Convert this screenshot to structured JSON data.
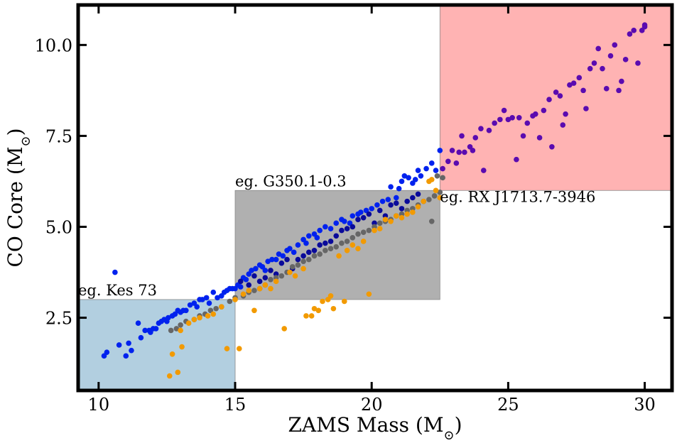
{
  "chart_data": {
    "type": "scatter",
    "title": "",
    "xlabel": "ZAMS Mass (M",
    "ylabel": "CO Core (M",
    "label_symbol": "⊙",
    "xlim": [
      9.25,
      31.0
    ],
    "ylim": [
      0.5,
      11.1
    ],
    "xticks": [
      10,
      15,
      20,
      25,
      30
    ],
    "xtick_labels": [
      "10",
      "15",
      "20",
      "25",
      "30"
    ],
    "yticks": [
      2.5,
      5.0,
      7.5,
      10.0
    ],
    "ytick_labels": [
      "2.5",
      "5.0",
      "7.5",
      "10.0"
    ],
    "grid": false,
    "regions": [
      {
        "x": [
          9.25,
          15.0
        ],
        "y": [
          0.5,
          3.0
        ],
        "color": "#b2cfe0",
        "label": "eg. Kes 73"
      },
      {
        "x": [
          15.0,
          22.5
        ],
        "y": [
          3.0,
          6.0
        ],
        "color": "#b0b0b0",
        "label": "eg. G350.1-0.3"
      },
      {
        "x": [
          22.5,
          31.0
        ],
        "y": [
          6.0,
          11.1
        ],
        "color": "#ffb3b3",
        "label": "eg. RX J1713.7-3946"
      }
    ],
    "series": [
      {
        "color": "#0022ee",
        "points": [
          [
            10.2,
            1.45
          ],
          [
            10.3,
            1.55
          ],
          [
            10.6,
            3.75
          ],
          [
            10.75,
            1.75
          ],
          [
            11.0,
            1.45
          ],
          [
            11.1,
            1.8
          ],
          [
            11.2,
            1.6
          ],
          [
            11.45,
            2.35
          ],
          [
            11.55,
            1.95
          ],
          [
            11.7,
            2.15
          ],
          [
            11.85,
            2.15
          ],
          [
            11.9,
            2.1
          ],
          [
            12.0,
            2.2
          ],
          [
            12.1,
            2.2
          ],
          [
            12.2,
            2.35
          ],
          [
            12.3,
            2.4
          ],
          [
            12.4,
            2.45
          ],
          [
            12.5,
            2.4
          ],
          [
            12.55,
            2.5
          ],
          [
            12.7,
            2.55
          ],
          [
            12.8,
            2.6
          ],
          [
            12.9,
            2.7
          ],
          [
            13.0,
            2.65
          ],
          [
            13.1,
            2.7
          ],
          [
            13.2,
            2.7
          ],
          [
            13.35,
            2.85
          ],
          [
            13.5,
            2.9
          ],
          [
            13.6,
            2.8
          ],
          [
            13.7,
            3.0
          ],
          [
            13.8,
            3.0
          ],
          [
            13.95,
            3.05
          ],
          [
            14.05,
            2.9
          ],
          [
            14.2,
            3.2
          ],
          [
            14.35,
            3.05
          ],
          [
            14.5,
            3.1
          ],
          [
            14.6,
            3.2
          ],
          [
            14.7,
            3.25
          ],
          [
            14.8,
            3.3
          ],
          [
            14.9,
            3.3
          ],
          [
            15.0,
            3.3
          ],
          [
            15.1,
            3.4
          ],
          [
            15.2,
            3.35
          ],
          [
            15.3,
            3.6
          ],
          [
            15.4,
            3.55
          ],
          [
            15.5,
            3.7
          ],
          [
            15.6,
            3.8
          ],
          [
            15.75,
            3.85
          ],
          [
            15.9,
            3.95
          ],
          [
            16.0,
            3.9
          ],
          [
            16.1,
            3.8
          ],
          [
            16.2,
            4.05
          ],
          [
            16.35,
            4.1
          ],
          [
            16.5,
            4.1
          ],
          [
            16.6,
            4.25
          ],
          [
            16.75,
            4.2
          ],
          [
            16.9,
            4.35
          ],
          [
            17.0,
            4.4
          ],
          [
            17.15,
            4.3
          ],
          [
            17.3,
            4.5
          ],
          [
            17.5,
            4.65
          ],
          [
            17.6,
            4.55
          ],
          [
            17.7,
            4.75
          ],
          [
            17.9,
            4.8
          ],
          [
            18.0,
            4.7
          ],
          [
            18.1,
            4.9
          ],
          [
            18.3,
            5.0
          ],
          [
            18.5,
            4.95
          ],
          [
            18.7,
            5.1
          ],
          [
            18.9,
            5.2
          ],
          [
            19.0,
            5.15
          ],
          [
            19.2,
            5.1
          ],
          [
            19.3,
            5.3
          ],
          [
            19.5,
            5.35
          ],
          [
            19.6,
            5.4
          ],
          [
            19.8,
            5.45
          ],
          [
            20.0,
            5.5
          ],
          [
            20.2,
            5.6
          ],
          [
            20.4,
            5.7
          ],
          [
            20.6,
            5.75
          ],
          [
            20.7,
            6.1
          ],
          [
            20.9,
            5.8
          ],
          [
            21.0,
            6.05
          ],
          [
            21.1,
            6.25
          ],
          [
            21.2,
            6.4
          ],
          [
            21.35,
            6.35
          ],
          [
            21.5,
            6.2
          ],
          [
            21.6,
            6.3
          ],
          [
            21.7,
            6.55
          ],
          [
            21.8,
            6.4
          ],
          [
            22.0,
            6.6
          ],
          [
            22.2,
            6.75
          ],
          [
            22.35,
            6.55
          ],
          [
            22.5,
            7.1
          ]
        ]
      },
      {
        "color": "#0a0a9a",
        "points": [
          [
            15.2,
            3.5
          ],
          [
            15.5,
            3.4
          ],
          [
            15.7,
            3.65
          ],
          [
            15.9,
            3.5
          ],
          [
            16.1,
            3.6
          ],
          [
            16.3,
            3.8
          ],
          [
            16.5,
            3.7
          ],
          [
            16.7,
            4.0
          ],
          [
            16.9,
            4.1
          ],
          [
            17.1,
            3.85
          ],
          [
            17.3,
            4.1
          ],
          [
            17.5,
            4.2
          ],
          [
            17.7,
            4.3
          ],
          [
            17.9,
            4.35
          ],
          [
            18.1,
            4.5
          ],
          [
            18.3,
            4.55
          ],
          [
            18.5,
            4.6
          ],
          [
            18.7,
            4.75
          ],
          [
            18.9,
            4.9
          ],
          [
            19.1,
            4.95
          ],
          [
            19.3,
            5.0
          ],
          [
            19.5,
            5.2
          ],
          [
            19.7,
            5.25
          ],
          [
            19.9,
            5.35
          ],
          [
            20.1,
            5.1
          ],
          [
            20.3,
            5.45
          ],
          [
            20.5,
            5.3
          ],
          [
            20.7,
            5.6
          ],
          [
            20.9,
            5.65
          ],
          [
            21.1,
            5.5
          ],
          [
            21.3,
            5.7
          ],
          [
            21.5,
            5.8
          ],
          [
            21.7,
            5.9
          ]
        ]
      },
      {
        "color": "#666666",
        "points": [
          [
            12.65,
            2.15
          ],
          [
            12.85,
            2.2
          ],
          [
            13.0,
            2.3
          ],
          [
            13.2,
            2.4
          ],
          [
            13.5,
            2.45
          ],
          [
            13.7,
            2.55
          ],
          [
            13.9,
            2.6
          ],
          [
            14.1,
            2.7
          ],
          [
            14.3,
            2.75
          ],
          [
            14.5,
            2.8
          ],
          [
            14.8,
            2.95
          ],
          [
            15.0,
            3.05
          ],
          [
            15.3,
            3.1
          ],
          [
            15.5,
            3.2
          ],
          [
            15.7,
            3.25
          ],
          [
            15.9,
            3.3
          ],
          [
            16.1,
            3.4
          ],
          [
            16.3,
            3.55
          ],
          [
            16.5,
            3.6
          ],
          [
            16.7,
            3.65
          ],
          [
            16.9,
            3.75
          ],
          [
            17.1,
            3.9
          ],
          [
            17.3,
            3.95
          ],
          [
            17.5,
            4.05
          ],
          [
            17.7,
            4.1
          ],
          [
            17.9,
            4.2
          ],
          [
            18.1,
            4.25
          ],
          [
            18.3,
            4.35
          ],
          [
            18.5,
            4.4
          ],
          [
            18.7,
            4.45
          ],
          [
            18.9,
            4.55
          ],
          [
            19.1,
            4.6
          ],
          [
            19.3,
            4.7
          ],
          [
            19.5,
            4.8
          ],
          [
            19.7,
            4.85
          ],
          [
            19.9,
            4.9
          ],
          [
            20.1,
            5.0
          ],
          [
            20.3,
            5.1
          ],
          [
            20.5,
            5.15
          ],
          [
            20.7,
            5.2
          ],
          [
            20.9,
            5.3
          ],
          [
            21.1,
            5.35
          ],
          [
            21.3,
            5.45
          ],
          [
            21.5,
            5.5
          ],
          [
            21.7,
            5.6
          ],
          [
            21.9,
            5.7
          ],
          [
            22.1,
            5.75
          ],
          [
            22.2,
            5.15
          ],
          [
            22.3,
            5.85
          ],
          [
            22.5,
            5.95
          ],
          [
            22.6,
            6.35
          ],
          [
            22.4,
            6.4
          ]
        ]
      },
      {
        "color": "#f29a00",
        "points": [
          [
            12.6,
            0.9
          ],
          [
            12.7,
            1.5
          ],
          [
            12.9,
            1.0
          ],
          [
            13.05,
            1.7
          ],
          [
            13.0,
            2.15
          ],
          [
            13.3,
            2.35
          ],
          [
            13.5,
            2.45
          ],
          [
            13.7,
            2.5
          ],
          [
            14.0,
            2.55
          ],
          [
            14.2,
            2.6
          ],
          [
            14.5,
            2.8
          ],
          [
            14.7,
            1.65
          ],
          [
            15.0,
            3.0
          ],
          [
            15.15,
            1.65
          ],
          [
            15.3,
            3.15
          ],
          [
            15.5,
            3.25
          ],
          [
            15.7,
            2.7
          ],
          [
            15.9,
            3.3
          ],
          [
            16.1,
            3.4
          ],
          [
            16.3,
            3.3
          ],
          [
            16.5,
            3.5
          ],
          [
            16.8,
            2.2
          ],
          [
            17.0,
            3.75
          ],
          [
            17.2,
            3.65
          ],
          [
            17.5,
            3.85
          ],
          [
            17.6,
            2.55
          ],
          [
            17.8,
            2.55
          ],
          [
            17.9,
            2.75
          ],
          [
            18.05,
            2.7
          ],
          [
            18.2,
            2.95
          ],
          [
            18.4,
            3.0
          ],
          [
            18.5,
            3.1
          ],
          [
            18.6,
            2.75
          ],
          [
            18.8,
            4.2
          ],
          [
            19.0,
            2.95
          ],
          [
            19.1,
            4.35
          ],
          [
            19.3,
            4.5
          ],
          [
            19.5,
            4.4
          ],
          [
            19.7,
            4.6
          ],
          [
            19.9,
            3.15
          ],
          [
            20.1,
            4.9
          ],
          [
            20.3,
            4.95
          ],
          [
            20.5,
            5.2
          ],
          [
            20.7,
            5.15
          ],
          [
            20.9,
            5.3
          ],
          [
            21.1,
            5.25
          ],
          [
            21.3,
            5.35
          ],
          [
            21.5,
            5.4
          ],
          [
            21.7,
            5.55
          ],
          [
            21.9,
            5.7
          ],
          [
            22.1,
            6.25
          ],
          [
            22.2,
            6.3
          ],
          [
            22.35,
            6.0
          ],
          [
            22.5,
            5.8
          ]
        ]
      },
      {
        "color": "#5a0bb0",
        "points": [
          [
            22.6,
            6.6
          ],
          [
            22.8,
            6.8
          ],
          [
            22.95,
            7.1
          ],
          [
            23.1,
            6.75
          ],
          [
            23.2,
            7.05
          ],
          [
            23.3,
            7.5
          ],
          [
            23.4,
            7.05
          ],
          [
            23.6,
            7.2
          ],
          [
            23.7,
            7.1
          ],
          [
            23.8,
            7.45
          ],
          [
            24.0,
            7.7
          ],
          [
            24.1,
            6.55
          ],
          [
            24.3,
            7.65
          ],
          [
            24.5,
            7.85
          ],
          [
            24.7,
            7.95
          ],
          [
            24.85,
            8.2
          ],
          [
            25.0,
            7.95
          ],
          [
            25.15,
            8.0
          ],
          [
            25.3,
            6.85
          ],
          [
            25.4,
            8.0
          ],
          [
            25.55,
            7.5
          ],
          [
            25.7,
            7.85
          ],
          [
            25.9,
            8.05
          ],
          [
            26.0,
            8.1
          ],
          [
            26.15,
            7.45
          ],
          [
            26.3,
            8.2
          ],
          [
            26.5,
            8.5
          ],
          [
            26.6,
            7.2
          ],
          [
            26.75,
            8.7
          ],
          [
            26.9,
            8.6
          ],
          [
            27.0,
            7.8
          ],
          [
            27.1,
            8.1
          ],
          [
            27.25,
            8.9
          ],
          [
            27.4,
            8.95
          ],
          [
            27.6,
            9.1
          ],
          [
            27.75,
            8.75
          ],
          [
            27.85,
            8.25
          ],
          [
            28.0,
            9.35
          ],
          [
            28.15,
            9.5
          ],
          [
            28.3,
            9.9
          ],
          [
            28.45,
            9.35
          ],
          [
            28.6,
            8.8
          ],
          [
            28.75,
            9.7
          ],
          [
            28.9,
            10.0
          ],
          [
            29.05,
            8.75
          ],
          [
            29.15,
            9.0
          ],
          [
            29.3,
            9.6
          ],
          [
            29.45,
            10.3
          ],
          [
            29.6,
            10.4
          ],
          [
            29.75,
            9.5
          ],
          [
            29.9,
            10.4
          ],
          [
            30.0,
            10.55
          ],
          [
            30.0,
            10.5
          ]
        ]
      }
    ]
  }
}
